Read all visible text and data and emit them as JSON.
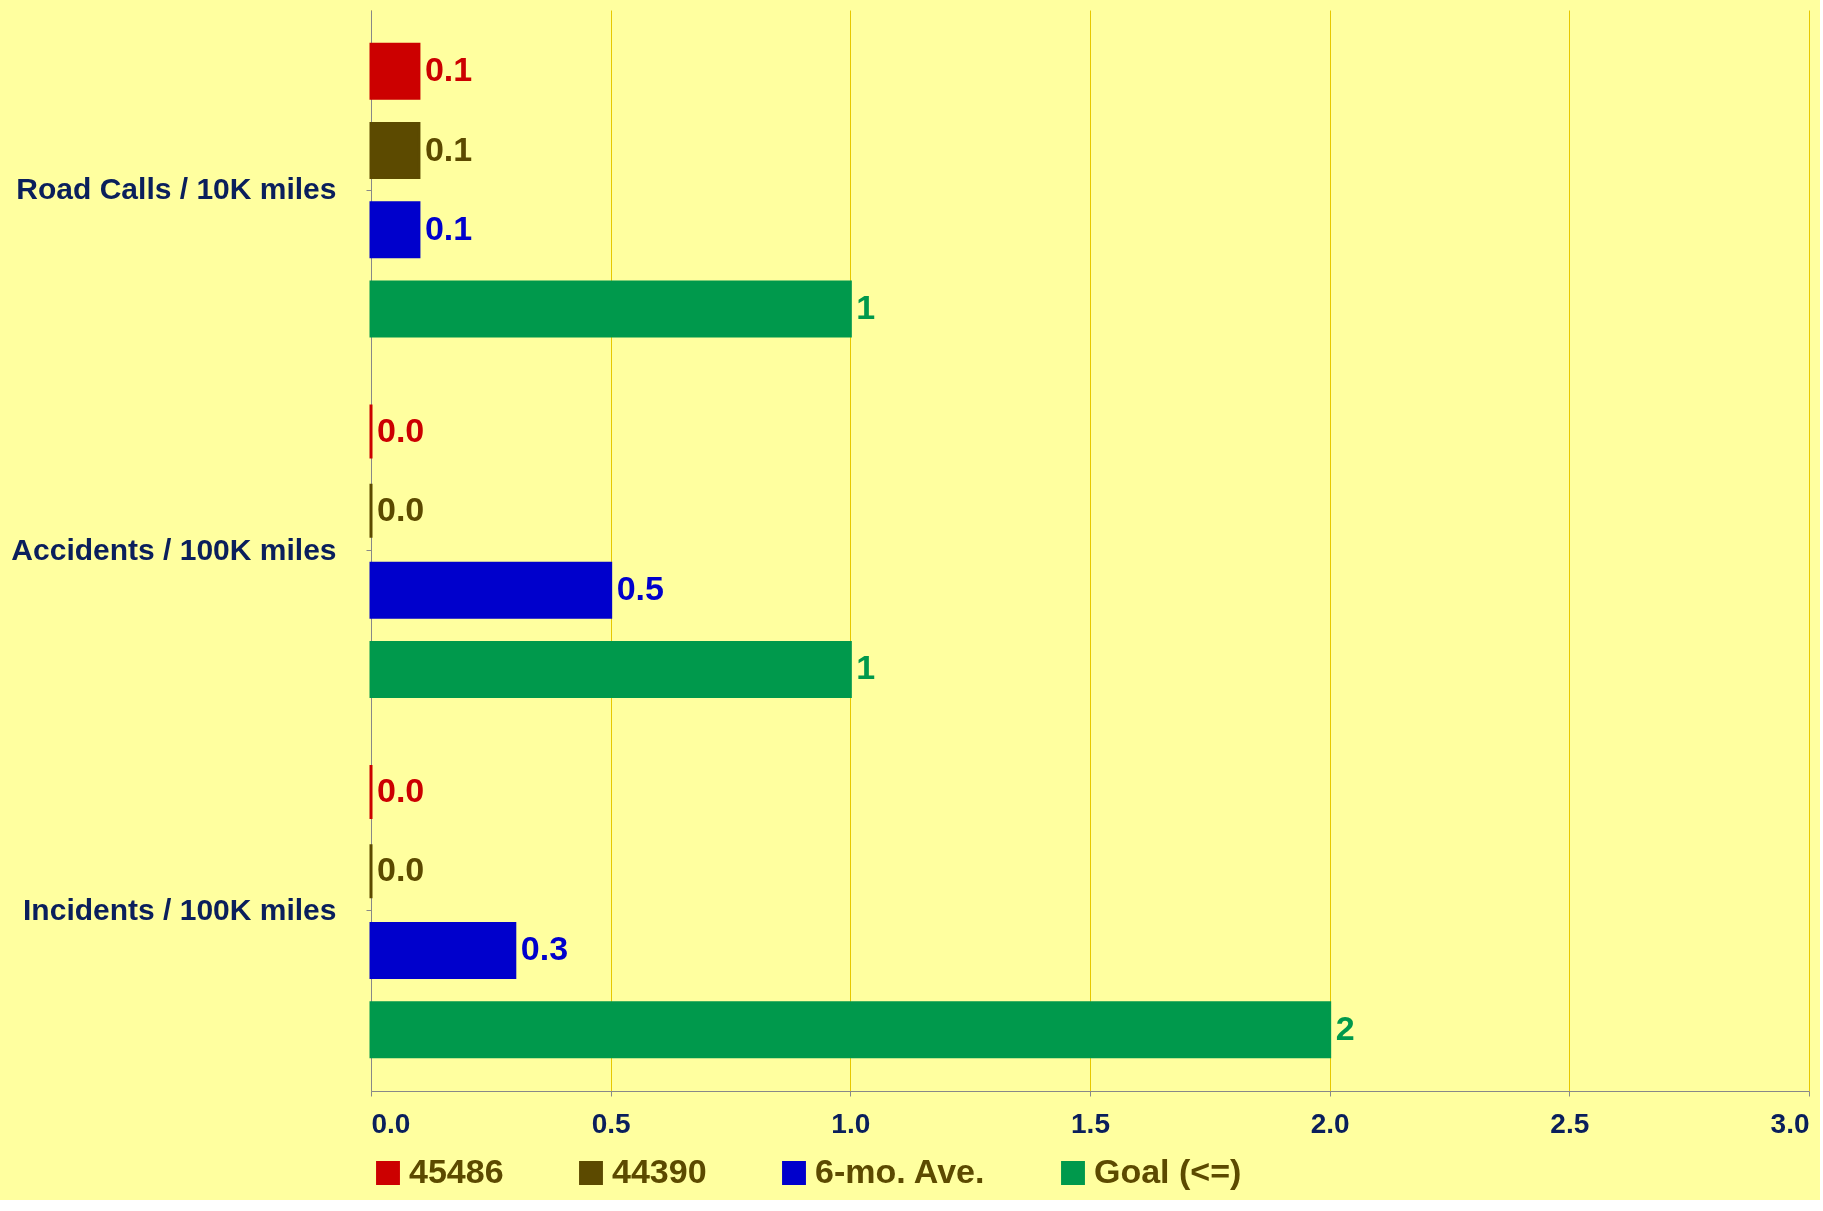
{
  "chart_data": {
    "type": "bar",
    "orientation": "horizontal",
    "categories": [
      "Road Calls / 10K miles",
      "Accidents / 100K miles",
      "Incidents / 100K miles"
    ],
    "series": [
      {
        "name": "45486",
        "color": "#cc0000",
        "values": [
          0.1,
          0,
          0
        ],
        "value_labels": [
          "0.1",
          "0.0",
          "0.0"
        ]
      },
      {
        "name": "44390",
        "color": "#5c4a00",
        "values": [
          0.1,
          0,
          0
        ],
        "value_labels": [
          "0.1",
          "0.0",
          "0.0"
        ]
      },
      {
        "name": "6-mo. Ave.",
        "color": "#0000cc",
        "values": [
          0.1,
          0.5,
          0.3
        ],
        "value_labels": [
          "0.1",
          "0.5",
          "0.3"
        ]
      },
      {
        "name": "Goal (<=)",
        "color": "#00994c",
        "values": [
          1,
          1,
          2
        ],
        "value_labels": [
          "1",
          "1",
          "2"
        ]
      }
    ],
    "xlim": [
      0,
      3
    ],
    "xticks": [
      {
        "value": 0,
        "label": "0.0"
      },
      {
        "value": 0.5,
        "label": "0.5"
      },
      {
        "value": 1,
        "label": "1.0"
      },
      {
        "value": 1.5,
        "label": "1.5"
      },
      {
        "value": 2,
        "label": "2.0"
      },
      {
        "value": 2.5,
        "label": "2.5"
      },
      {
        "value": 3,
        "label": "3.0"
      }
    ],
    "grid": "x",
    "legend": "bottom"
  }
}
